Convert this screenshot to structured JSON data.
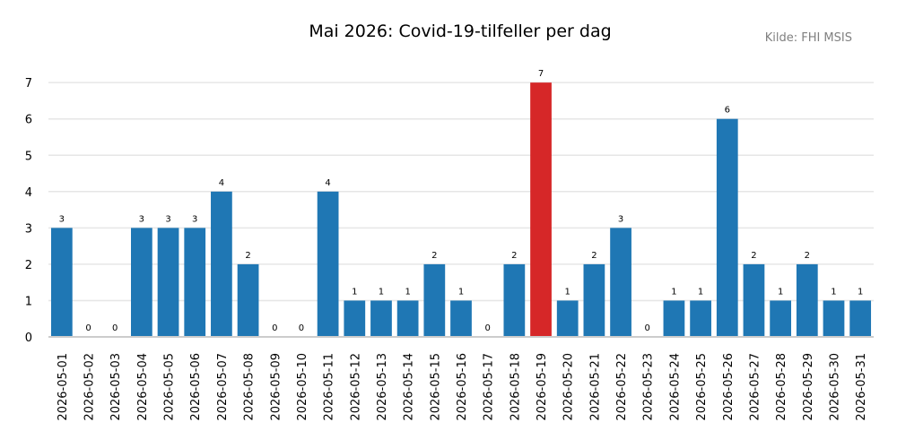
{
  "chart_data": {
    "type": "bar",
    "title": "Mai 2026: Covid-19-tilfeller per dag",
    "source_note": "Kilde: FHI MSIS",
    "xlabel": "",
    "ylabel": "",
    "ylim": [
      0,
      7.3
    ],
    "yticks": [
      0,
      1,
      2,
      3,
      4,
      5,
      6,
      7
    ],
    "grid": "horizontal",
    "bar_color": "#1f77b4",
    "highlight_color": "#d62728",
    "highlight_category": "2026-05-19",
    "categories": [
      "2026-05-01",
      "2026-05-02",
      "2026-05-03",
      "2026-05-04",
      "2026-05-05",
      "2026-05-06",
      "2026-05-07",
      "2026-05-08",
      "2026-05-09",
      "2026-05-10",
      "2026-05-11",
      "2026-05-12",
      "2026-05-13",
      "2026-05-14",
      "2026-05-15",
      "2026-05-16",
      "2026-05-17",
      "2026-05-18",
      "2026-05-19",
      "2026-05-20",
      "2026-05-21",
      "2026-05-22",
      "2026-05-23",
      "2026-05-24",
      "2026-05-25",
      "2026-05-26",
      "2026-05-27",
      "2026-05-28",
      "2026-05-29",
      "2026-05-30",
      "2026-05-31"
    ],
    "values": [
      3,
      0,
      0,
      3,
      3,
      3,
      4,
      2,
      0,
      0,
      4,
      1,
      1,
      1,
      2,
      1,
      0,
      2,
      7,
      1,
      2,
      3,
      0,
      1,
      1,
      6,
      2,
      1,
      2,
      1,
      1
    ]
  }
}
